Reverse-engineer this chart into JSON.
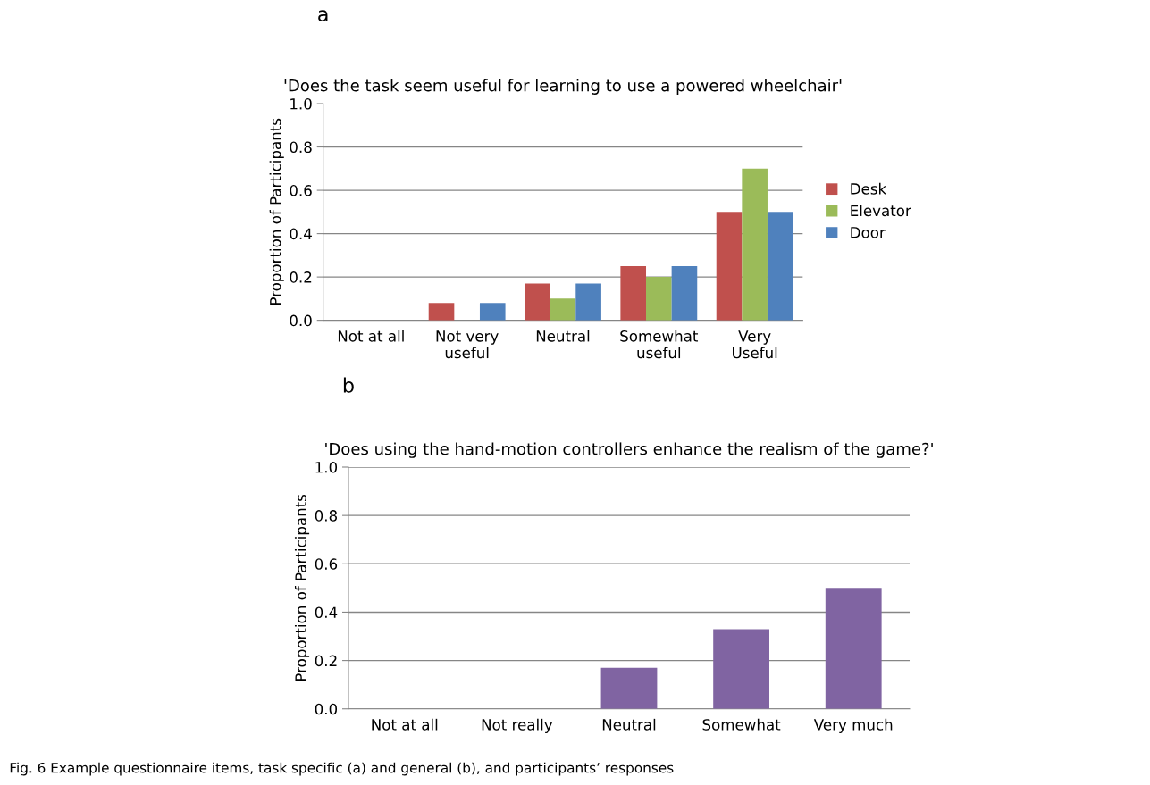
{
  "chart_data": [
    {
      "type": "bar",
      "title": "'Does the task seem useful for learning to use a powered wheelchair'",
      "ylabel": "Proportion of Participants",
      "categories": [
        "Not at all",
        "Not very\nuseful",
        "Neutral",
        "Somewhat\nuseful",
        "Very\nUseful"
      ],
      "series": [
        {
          "name": "Desk",
          "color": "#c0504d",
          "values": [
            0,
            0.08,
            0.17,
            0.25,
            0.5
          ]
        },
        {
          "name": "Elevator",
          "color": "#9bbb59",
          "values": [
            0,
            0,
            0.1,
            0.2,
            0.7
          ]
        },
        {
          "name": "Door",
          "color": "#4f81bd",
          "values": [
            0,
            0.08,
            0.17,
            0.25,
            0.5
          ]
        }
      ],
      "ylim": [
        0,
        1.0
      ],
      "yticks": [
        {
          "value": 0,
          "label": "0.0"
        },
        {
          "value": 0.2,
          "label": "0.2"
        },
        {
          "value": 0.4,
          "label": "0.4"
        },
        {
          "value": 0.6,
          "label": "0.6"
        },
        {
          "value": 0.8,
          "label": "0.8"
        },
        {
          "value": 1.0,
          "label": "1.0"
        }
      ],
      "grid": "y",
      "legend": "right",
      "annotations": [
        "a"
      ]
    },
    {
      "type": "bar",
      "title": "'Does using the hand-motion controllers enhance the realism of the game?'",
      "ylabel": "Proportion of Participants",
      "categories": [
        "Not at all",
        "Not really",
        "Neutral",
        "Somewhat",
        "Very much"
      ],
      "series": [
        {
          "color": "#8064a2",
          "values": [
            0,
            0,
            0.17,
            0.33,
            0.5
          ]
        }
      ],
      "ylim": [
        0,
        1.0
      ],
      "yticks": [
        {
          "value": 0,
          "label": "0.0"
        },
        {
          "value": 0.2,
          "label": "0.2"
        },
        {
          "value": 0.4,
          "label": "0.4"
        },
        {
          "value": 0.6,
          "label": "0.6"
        },
        {
          "value": 0.8,
          "label": "0.8"
        },
        {
          "value": 1.0,
          "label": "1.0"
        }
      ],
      "grid": "y",
      "annotations": [
        "b",
        "Fig. 6 Example questionnaire items, task specific (a) and general (b), and participants’ responses"
      ]
    }
  ]
}
